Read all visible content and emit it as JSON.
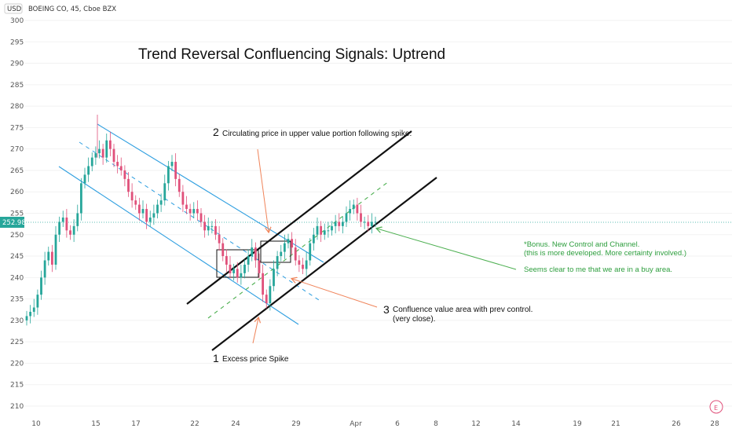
{
  "chart_data": {
    "type": "candlestick",
    "symbol": "BOEING CO, 45, Cboe BZX",
    "currency": "USD",
    "title": "Trend Reversal Confluencing Signals: Uptrend",
    "last_price": "252.98",
    "ylim": [
      205,
      300
    ],
    "y_ticks": [
      210,
      215,
      220,
      225,
      230,
      235,
      240,
      245,
      250,
      255,
      260,
      265,
      270,
      275,
      280,
      285,
      290,
      295,
      300
    ],
    "x_ticks": [
      "10",
      "15",
      "17",
      "22",
      "24",
      "29",
      "Apr",
      "6",
      "8",
      "12",
      "14",
      "19",
      "21",
      "26",
      "28"
    ],
    "close_series": [
      231,
      232,
      233,
      236,
      240,
      244,
      246,
      243,
      250,
      253,
      254,
      251,
      250,
      252,
      255,
      262,
      264,
      266,
      268,
      269,
      270,
      268,
      272,
      270,
      267,
      266,
      265,
      263,
      260,
      258,
      257,
      255,
      256,
      253,
      254,
      255,
      257,
      258,
      262,
      266,
      267,
      263,
      260,
      257,
      256,
      255,
      256,
      255,
      253,
      251,
      252,
      252,
      250,
      248,
      245,
      243,
      241,
      242,
      240,
      241,
      243,
      245,
      247,
      244,
      241,
      236,
      234,
      238,
      242,
      245,
      246,
      248,
      249,
      247,
      244,
      243,
      242,
      244,
      248,
      250,
      252,
      250,
      251,
      251,
      252,
      253,
      252,
      253,
      255,
      256,
      257,
      255,
      253,
      253,
      252,
      253,
      253
    ]
  },
  "annotations": {
    "a1_num": "1",
    "a1_text": "Excess price Spike",
    "a2_num": "2",
    "a2_text": "Circulating price in upper value portion following spike.",
    "a3_num": "3",
    "a3_text_1": "Confluence value area with prev control.",
    "a3_text_2": "(very close).",
    "bonus_1": "*Bonus. New Control and Channel.",
    "bonus_2": "(this is more developed. More certainty involved.)",
    "bonus_3": "Seems clear to me that we are in a buy area."
  },
  "colors": {
    "up": "#26a69a",
    "down": "#e0507a",
    "channel_blue": "#2f9fe0",
    "arrow_orange": "#f0845a",
    "green": "#4caf50",
    "price_line": "#26a69a"
  },
  "widgets": {
    "e_badge": "E"
  }
}
